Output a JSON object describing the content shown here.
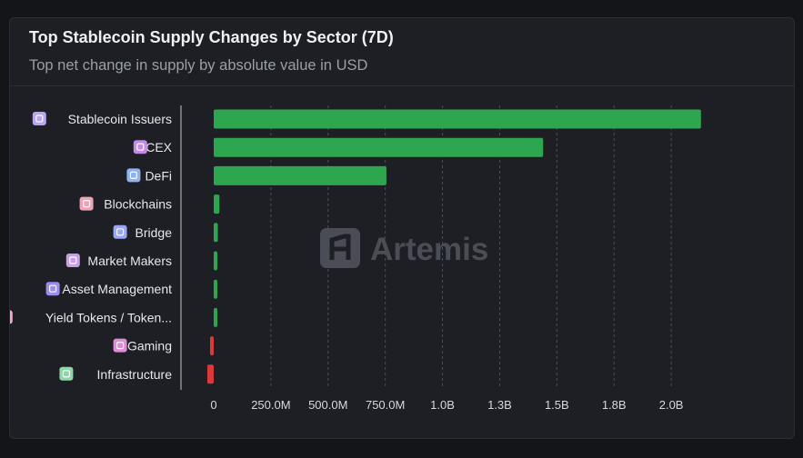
{
  "header": {
    "title": "Top Stablecoin Supply Changes by Sector (7D)",
    "subtitle": "Top net change in supply by absolute value in USD"
  },
  "watermark": {
    "text": "Artemis"
  },
  "colors": {
    "positive": "#2ea64f",
    "negative": "#d83a3a",
    "background": "#1d1f25",
    "grid": "#4a4e57"
  },
  "chart_data": {
    "type": "bar",
    "orientation": "horizontal",
    "title": "Top Stablecoin Supply Changes by Sector (7D)",
    "subtitle": "Top net change in supply by absolute value in USD",
    "categories": [
      "Stablecoin Issuers",
      "CEX",
      "DeFi",
      "Blockchains",
      "Bridge",
      "Market Makers",
      "Asset Management",
      "Yield Tokens / Token...",
      "Gaming",
      "Infrastructure"
    ],
    "icons": [
      "stablecoin-issuers-icon",
      "cex-icon",
      "defi-icon",
      "blockchains-icon",
      "bridge-icon",
      "market-makers-icon",
      "asset-management-icon",
      "yield-tokens-icon",
      "gaming-icon",
      "infrastructure-icon"
    ],
    "values": [
      2130000000,
      1440000000,
      755000000,
      25000000,
      18000000,
      16000000,
      15000000,
      14000000,
      -15000000,
      -28000000
    ],
    "xlim": [
      0,
      2250000000
    ],
    "xticks": [
      0,
      250000000,
      500000000,
      750000000,
      1000000000,
      1250000000,
      1500000000,
      1750000000,
      2000000000
    ],
    "xtick_labels": [
      "0",
      "250.0M",
      "500.0M",
      "750.0M",
      "1.0B",
      "1.3B",
      "1.5B",
      "1.8B",
      "2.0B"
    ],
    "grid": true,
    "legend": false
  }
}
